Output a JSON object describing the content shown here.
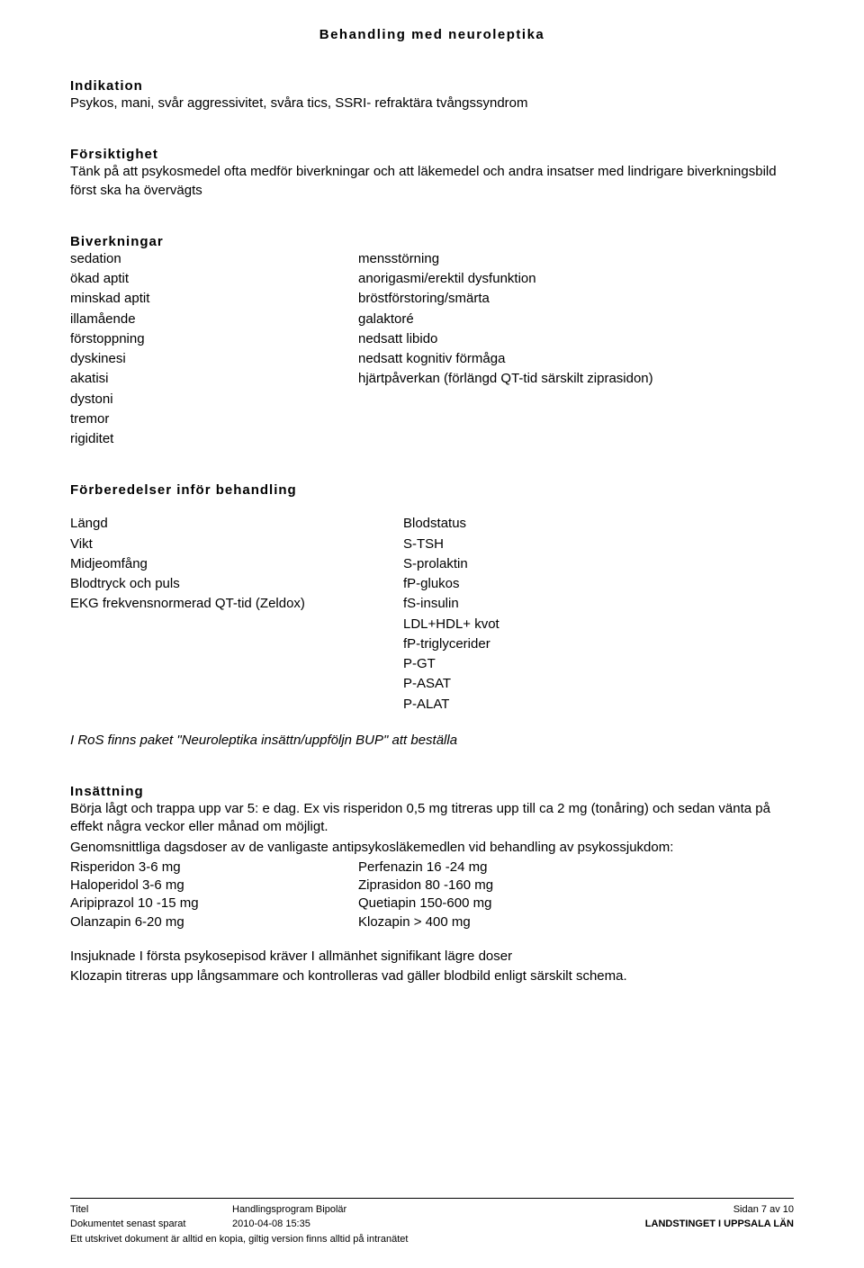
{
  "title": "Behandling med neuroleptika",
  "indikation": {
    "heading": "Indikation",
    "text": "Psykos, mani, svår aggressivitet, svåra tics, SSRI- refraktära tvångssyndrom"
  },
  "forsiktighet": {
    "heading": "Försiktighet",
    "text": "Tänk på att psykosmedel ofta medför biverkningar och att läkemedel och andra insatser med lindrigare biverkningsbild först ska ha övervägts"
  },
  "biverkningar": {
    "heading": "Biverkningar",
    "rows": [
      {
        "left": "sedation",
        "right": "mensstörning"
      },
      {
        "left": "ökad aptit",
        "right": "anorigasmi/erektil dysfunktion"
      },
      {
        "left": "minskad aptit",
        "right": "bröstförstoring/smärta"
      },
      {
        "left": "illamående",
        "right": "galaktoré"
      },
      {
        "left": "förstoppning",
        "right": "nedsatt libido"
      },
      {
        "left": "dyskinesi",
        "right": "nedsatt kognitiv förmåga"
      },
      {
        "left": "akatisi",
        "right": "hjärtpåverkan (förlängd QT-tid särskilt ziprasidon)"
      },
      {
        "left": "dystoni",
        "right": ""
      },
      {
        "left": "tremor",
        "right": ""
      },
      {
        "left": "rigiditet",
        "right": ""
      }
    ]
  },
  "forberedelser": {
    "heading": "Förberedelser inför behandling",
    "rows": [
      {
        "left": "Längd",
        "right": "Blodstatus"
      },
      {
        "left": "Vikt",
        "right": "S-TSH"
      },
      {
        "left": "Midjeomfång",
        "right": "S-prolaktin"
      },
      {
        "left": "Blodtryck och puls",
        "right": "fP-glukos"
      },
      {
        "left": "EKG frekvensnormerad QT-tid (Zeldox)",
        "right": "fS-insulin"
      },
      {
        "left": "",
        "right": "LDL+HDL+ kvot"
      },
      {
        "left": "",
        "right": "fP-triglycerider"
      },
      {
        "left": "",
        "right": "P-GT"
      },
      {
        "left": "",
        "right": "P-ASAT"
      },
      {
        "left": "",
        "right": "P-ALAT"
      }
    ]
  },
  "ros_note": "I RoS finns paket \"Neuroleptika insättn/uppföljn BUP\" att beställa",
  "insattning": {
    "heading": "Insättning",
    "para1": "Börja lågt och trappa upp var 5: e dag. Ex vis risperidon 0,5 mg titreras upp till ca 2 mg (tonåring) och sedan vänta på effekt några veckor eller månad om möjligt.",
    "para2": "Genomsnittliga dagsdoser av de vanligaste antipsykosläkemedlen vid behandling av psykossjukdom:",
    "doses": [
      {
        "left": "Risperidon  3-6 mg",
        "right": "Perfenazin  16 -24 mg"
      },
      {
        "left": "Haloperidol 3-6 mg",
        "right": "Ziprasidon  80 -160 mg"
      },
      {
        "left": "Aripiprazol 10 -15 mg",
        "right": "Quetiapin   150-600 mg"
      },
      {
        "left": "Olanzapin  6-20 mg",
        "right": "Klozapin    > 400 mg"
      }
    ],
    "para3": "Insjuknade I första psykosepisod kräver I allmänhet signifikant lägre doser",
    "para4": "Klozapin titreras upp långsammare och kontrolleras vad gäller blodbild enligt särskilt schema."
  },
  "footer": {
    "titel_label": "Titel",
    "titel_value": "Handlingsprogram Bipolär",
    "page_info": "Sidan 7 av 10",
    "saved_label": "Dokumentet senast sparat",
    "saved_value": "2010-04-08 15:35",
    "org": "LANDSTINGET I UPPSALA LÄN",
    "print_note": "Ett utskrivet dokument är alltid en kopia, giltig version finns alltid på intranätet"
  }
}
